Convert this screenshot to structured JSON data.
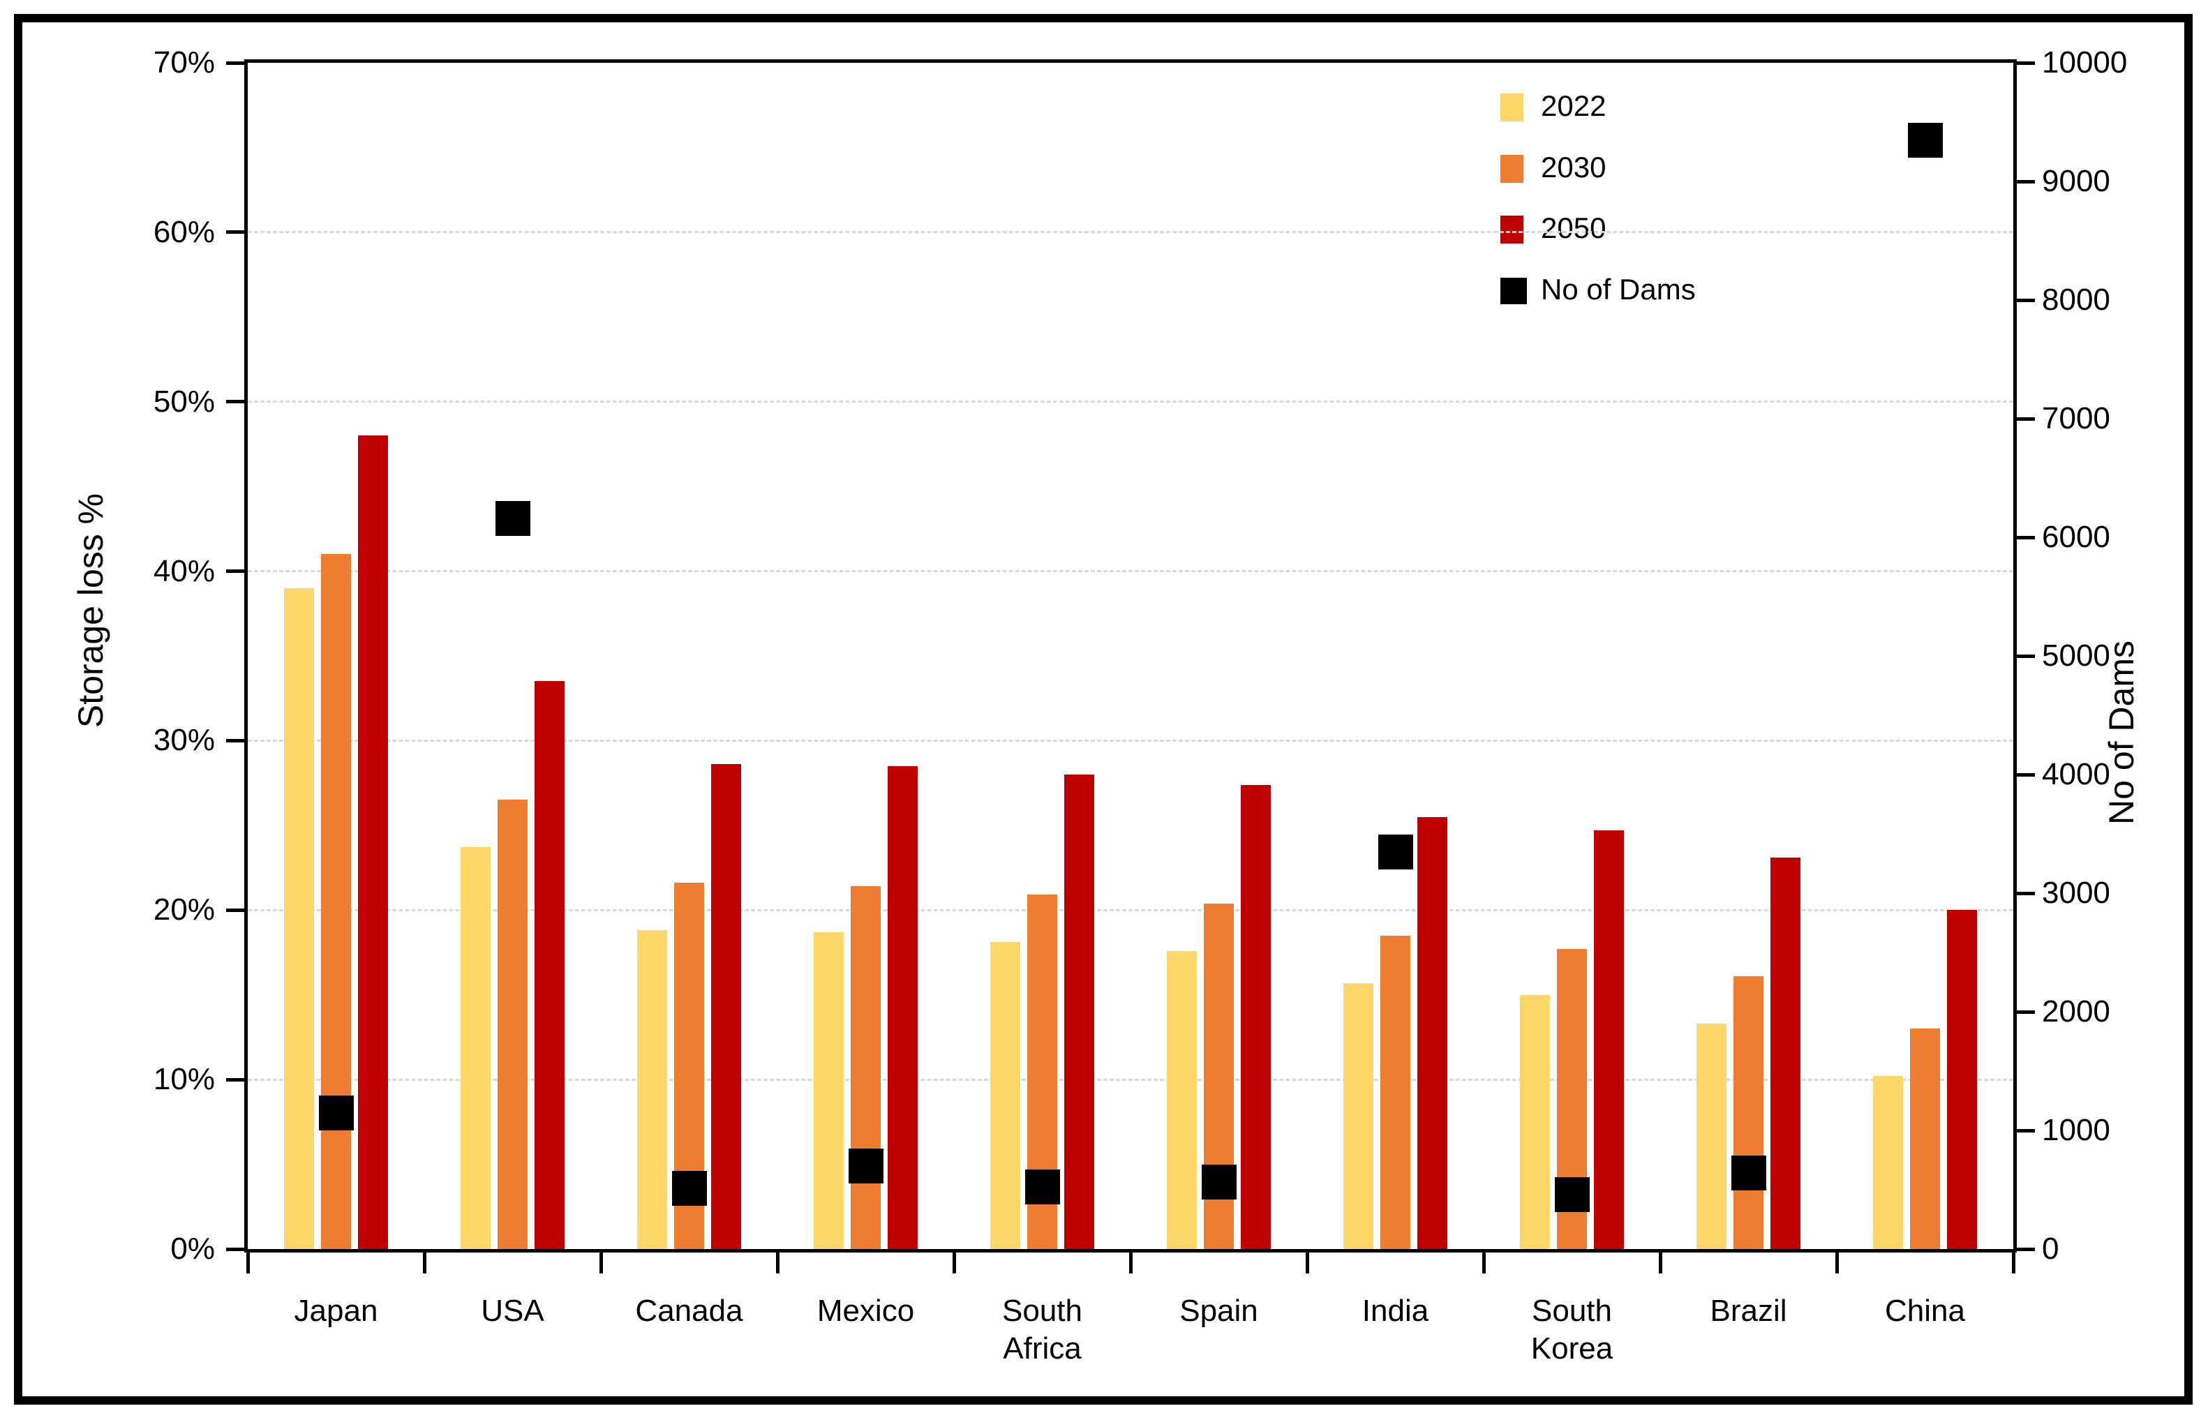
{
  "axes": {
    "left_title": "Storage loss %",
    "right_title": "No of Dams"
  },
  "legend": {
    "items": [
      {
        "label": "2022",
        "color": "#FDD76A",
        "kind": "bar-swatch"
      },
      {
        "label": "2030",
        "color": "#ED7D31",
        "kind": "bar-swatch"
      },
      {
        "label": "2050",
        "color": "#C00000",
        "kind": "bar-swatch"
      },
      {
        "label": "No of Dams",
        "color": "#000000",
        "kind": "marker-swatch"
      }
    ]
  },
  "colors": {
    "background": "#FFFFFF",
    "frame": "#000000",
    "axis": "#000000",
    "gridline": "#D9D9D9",
    "bar_2022": "#FDD76A",
    "bar_2030": "#ED7D31",
    "bar_2050": "#C00000",
    "marker": "#000000"
  },
  "chart_data": {
    "type": "bar",
    "title": "",
    "categories": [
      "Japan",
      "USA",
      "Canada",
      "Mexico",
      "South Africa",
      "Spain",
      "India",
      "South Korea",
      "Brazil",
      "China"
    ],
    "category_label_lines": [
      [
        "Japan"
      ],
      [
        "USA"
      ],
      [
        "Canada"
      ],
      [
        "Mexico"
      ],
      [
        "South",
        "Africa"
      ],
      [
        "Spain"
      ],
      [
        "India"
      ],
      [
        "South",
        "Korea"
      ],
      [
        "Brazil"
      ],
      [
        "China"
      ]
    ],
    "series": [
      {
        "name": "2022",
        "color": "#FDD76A",
        "axis": "left",
        "values": [
          39.0,
          23.7,
          18.8,
          18.7,
          18.1,
          17.6,
          15.7,
          15.0,
          13.3,
          10.2
        ]
      },
      {
        "name": "2030",
        "color": "#ED7D31",
        "axis": "left",
        "values": [
          41.0,
          26.5,
          21.6,
          21.4,
          20.9,
          20.4,
          18.5,
          17.7,
          16.1,
          13.0
        ]
      },
      {
        "name": "2050",
        "color": "#C00000",
        "axis": "left",
        "values": [
          48.0,
          33.5,
          28.6,
          28.5,
          28.0,
          27.4,
          25.5,
          24.7,
          23.1,
          20.0
        ]
      }
    ],
    "marker_series": {
      "name": "No of Dams",
      "color": "#000000",
      "axis": "right",
      "shape": "square",
      "values": [
        1150,
        6160,
        510,
        700,
        525,
        565,
        3345,
        460,
        640,
        9350
      ]
    },
    "left_axis": {
      "title": "Storage loss %",
      "min": 0,
      "max": 70,
      "step": 10,
      "tick_format": "percent",
      "tick_labels": [
        "0%",
        "10%",
        "20%",
        "30%",
        "40%",
        "50%",
        "60%",
        "70%"
      ]
    },
    "right_axis": {
      "title": "No of Dams",
      "min": 0,
      "max": 10000,
      "step": 1000,
      "tick_labels": [
        "0",
        "1000",
        "2000",
        "3000",
        "4000",
        "5000",
        "6000",
        "7000",
        "8000",
        "9000",
        "10000"
      ]
    },
    "grid": {
      "horizontal": "dashed",
      "color": "#D9D9D9",
      "at_percent": [
        10,
        20,
        30,
        40,
        50,
        60
      ]
    },
    "legend_position": "inside-top-right",
    "note": "bars = storage loss % (left axis); black squares = number of dams (right axis)"
  }
}
